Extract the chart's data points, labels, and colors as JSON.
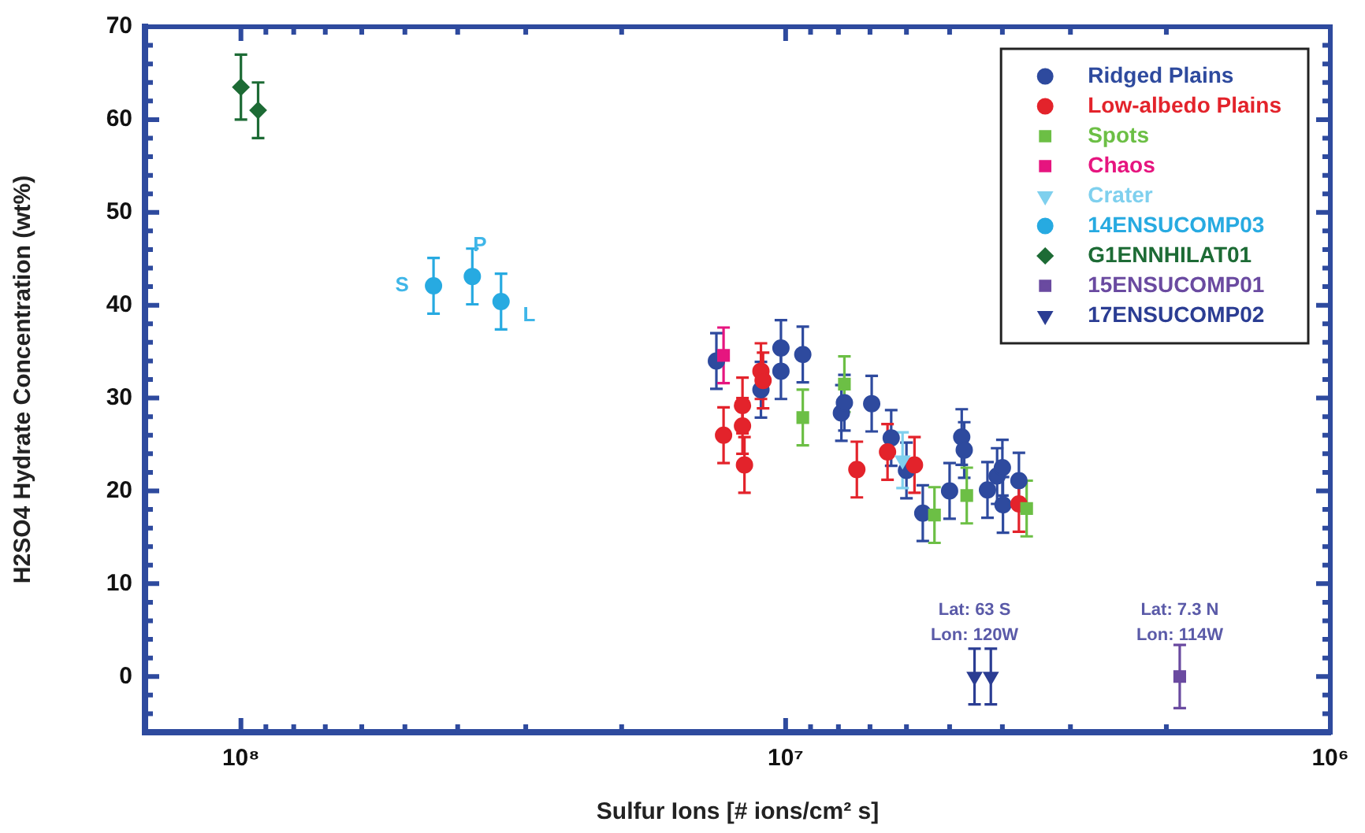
{
  "chart_data": {
    "type": "scatter",
    "xlabel": "Sulfur Ions [# ions/cm² s]",
    "ylabel": "H2SO4 Hydrate Concentration (wt%)",
    "log": "x",
    "grid": false,
    "legend": "top right",
    "xlim": [
      150000000,
      1000000
    ],
    "ylim": [
      -6,
      70
    ],
    "xticks": [
      {
        "value": 100000000,
        "label": "10⁸"
      },
      {
        "value": 90000000,
        "label": null
      },
      {
        "value": 80000000,
        "label": null
      },
      {
        "value": 70000000,
        "label": null
      },
      {
        "value": 60000000,
        "label": null
      },
      {
        "value": 50000000,
        "label": null
      },
      {
        "value": 40000000,
        "label": null
      },
      {
        "value": 30000000,
        "label": null
      },
      {
        "value": 20000000,
        "label": null
      },
      {
        "value": 10000000,
        "label": "10⁷"
      },
      {
        "value": 9000000,
        "label": null
      },
      {
        "value": 8000000,
        "label": null
      },
      {
        "value": 7000000,
        "label": null
      },
      {
        "value": 6000000,
        "label": null
      },
      {
        "value": 5000000,
        "label": null
      },
      {
        "value": 4000000,
        "label": null
      },
      {
        "value": 3000000,
        "label": null
      },
      {
        "value": 2000000,
        "label": null
      },
      {
        "value": 1000000,
        "label": "10⁶"
      }
    ],
    "yticks": [
      {
        "value": -4,
        "label": null
      },
      {
        "value": -2,
        "label": null
      },
      0,
      {
        "value": 2,
        "label": null
      },
      {
        "value": 4,
        "label": null
      },
      {
        "value": 6,
        "label": null
      },
      {
        "value": 8,
        "label": null
      },
      10,
      {
        "value": 12,
        "label": null
      },
      {
        "value": 14,
        "label": null
      },
      {
        "value": 16,
        "label": null
      },
      {
        "value": 18,
        "label": null
      },
      20,
      {
        "value": 22,
        "label": null
      },
      {
        "value": 24,
        "label": null
      },
      {
        "value": 26,
        "label": null
      },
      {
        "value": 28,
        "label": null
      },
      30,
      {
        "value": 32,
        "label": null
      },
      {
        "value": 34,
        "label": null
      },
      {
        "value": 36,
        "label": null
      },
      {
        "value": 38,
        "label": null
      },
      40,
      {
        "value": 42,
        "label": null
      },
      {
        "value": 44,
        "label": null
      },
      {
        "value": 46,
        "label": null
      },
      {
        "value": 48,
        "label": null
      },
      50,
      {
        "value": 52,
        "label": null
      },
      {
        "value": 54,
        "label": null
      },
      {
        "value": 56,
        "label": null
      },
      {
        "value": 58,
        "label": null
      },
      60,
      {
        "value": 62,
        "label": null
      },
      {
        "value": 64,
        "label": null
      },
      {
        "value": 66,
        "label": null
      },
      {
        "value": 68,
        "label": null
      },
      70
    ],
    "series": [
      {
        "name": "Ridged Plains",
        "color": "#2e4a9e",
        "marker": "circle",
        "x": [
          13400000,
          11100000,
          10200000,
          10200000,
          9300000,
          7900000,
          7800000,
          6950000,
          6400000,
          6000000,
          5600000,
          5000000,
          4750000,
          4700000,
          4260000,
          4090000,
          4000000,
          3990000,
          3730000
        ],
        "values": [
          34.0,
          30.9,
          35.4,
          32.9,
          34.7,
          28.4,
          29.5,
          29.4,
          25.7,
          22.2,
          17.6,
          20,
          25.8,
          24.4,
          20.1,
          21.6,
          22.5,
          18.5,
          21.1
        ],
        "errors": [
          3,
          3,
          3,
          3,
          3,
          3,
          3,
          3,
          3,
          3,
          3,
          3,
          3,
          3,
          3,
          3,
          3,
          3,
          3
        ]
      },
      {
        "name": "Low-albedo Plains",
        "color": "#e3232b",
        "marker": "circle",
        "x": [
          13000000,
          12000000,
          12000000,
          11900000,
          11100000,
          11000000,
          7400000,
          6500000,
          5800000,
          3730000
        ],
        "values": [
          26,
          29.2,
          27,
          22.8,
          32.9,
          31.9,
          22.3,
          24.2,
          22.8,
          18.6
        ],
        "errors": [
          3,
          3,
          3,
          3,
          3,
          3,
          3,
          3,
          3,
          3
        ]
      },
      {
        "name": "Spots",
        "color": "#6cbf45",
        "marker": "square",
        "x": [
          7800000,
          9300000,
          5330000,
          4650000,
          3610000
        ],
        "values": [
          31.5,
          27.9,
          17.4,
          19.5,
          18.1
        ],
        "errors": [
          3,
          3,
          3,
          3,
          3
        ]
      },
      {
        "name": "Chaos",
        "color": "#e6157f",
        "marker": "square",
        "x": [
          13000000
        ],
        "values": [
          34.6
        ],
        "errors": [
          3
        ]
      },
      {
        "name": "Crater",
        "color": "#7fd0ee",
        "marker": "triangle_down",
        "x": [
          6100000
        ],
        "values": [
          23.3
        ],
        "errors": [
          3
        ]
      },
      {
        "name": "14ENSUCOMP03",
        "color": "#27aae1",
        "marker": "circle",
        "x": [
          44300000,
          37600000,
          33300000
        ],
        "values": [
          42.1,
          43.1,
          40.4
        ],
        "errors": [
          3,
          3,
          3
        ]
      },
      {
        "name": "G1ENNHILAT01",
        "color": "#1d6b35",
        "marker": "diamond",
        "x": [
          100000000,
          93000000
        ],
        "values": [
          63.5,
          61
        ],
        "errors": [
          3.5,
          3
        ]
      },
      {
        "name": "15ENSUCOMP01",
        "color": "#6a4aa0",
        "marker": "square",
        "x": [
          1890000
        ],
        "values": [
          0
        ],
        "errors": [
          3.4
        ]
      },
      {
        "name": "17ENSUCOMP02",
        "color": "#2b3d93",
        "marker": "triangle_down",
        "x": [
          4500000,
          4200000
        ],
        "values": [
          0,
          0
        ],
        "errors": [
          3,
          3
        ]
      }
    ],
    "annotations": [
      {
        "text": "S",
        "x": 44300000,
        "y": 42.1
      },
      {
        "text": "P",
        "x": 37600000,
        "y": 43.1
      },
      {
        "text": "L",
        "x": 33300000,
        "y": 40.4
      },
      {
        "text": "Lat: 63 S\nLon: 120W",
        "x": 4500000,
        "y": 0
      },
      {
        "text": "Lat: 7.3 N\nLon: 114W",
        "x": 1890000,
        "y": 0
      }
    ]
  }
}
